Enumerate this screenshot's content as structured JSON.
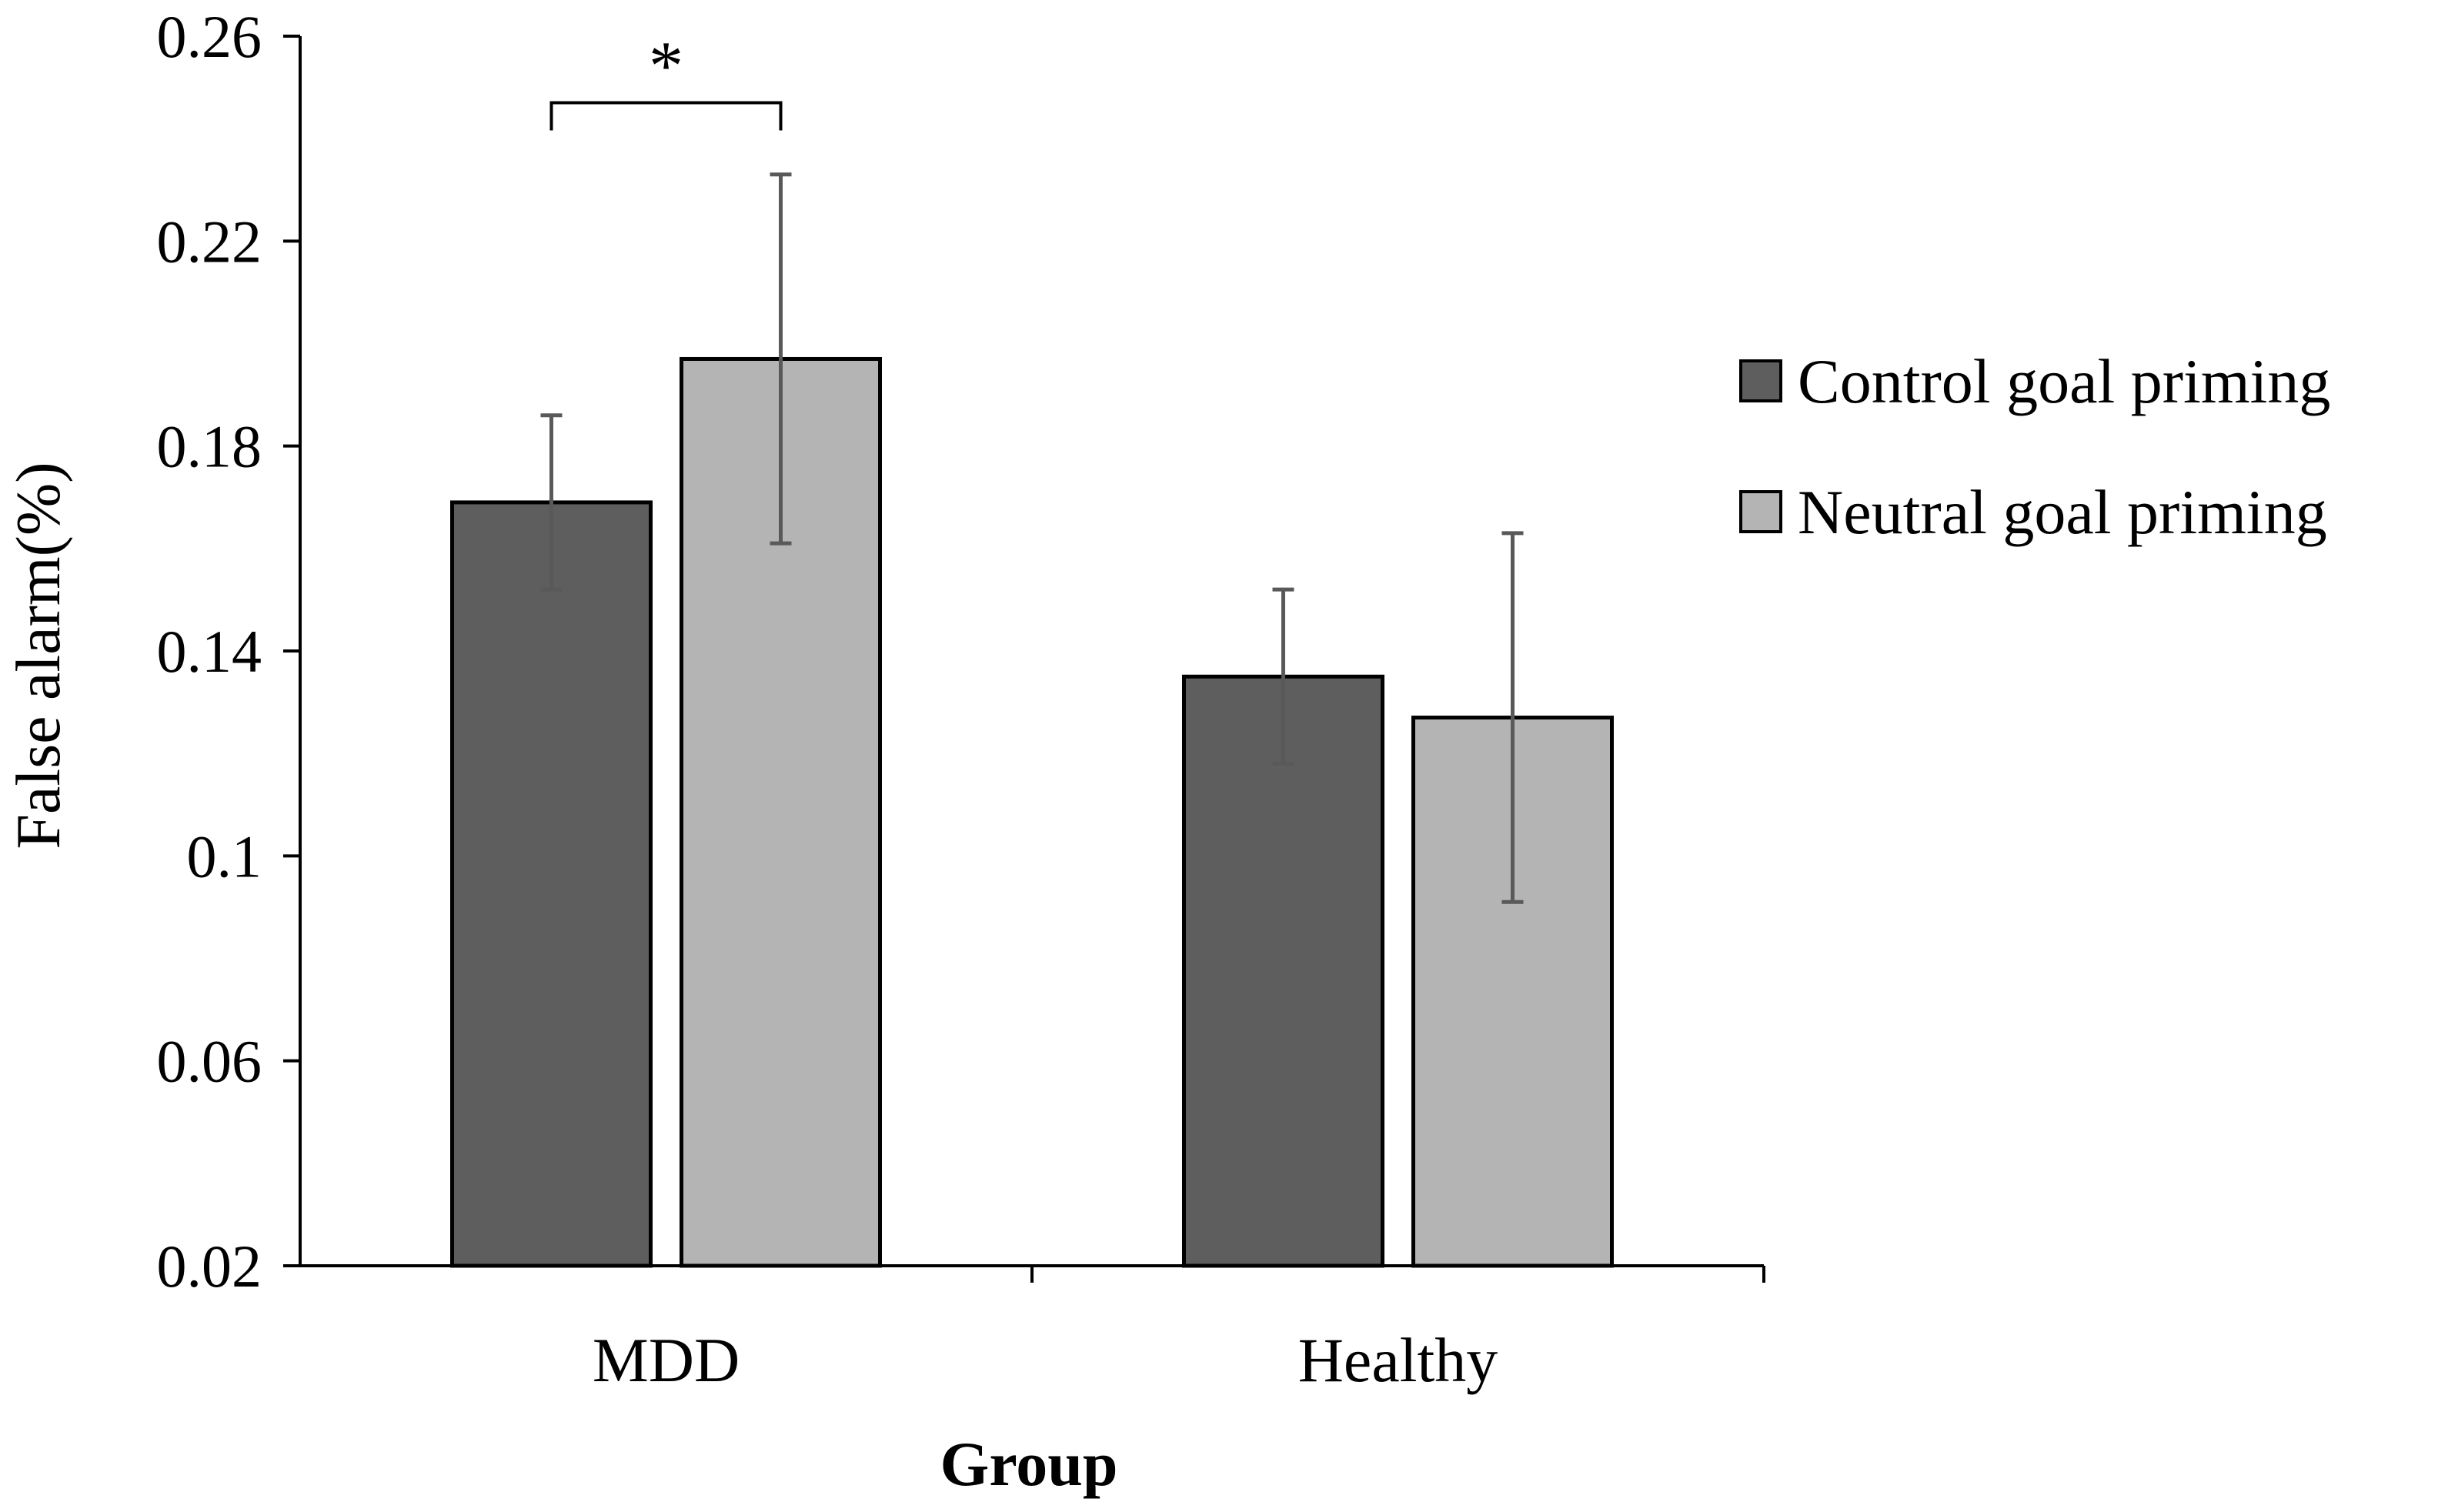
{
  "chart_data": {
    "type": "bar",
    "title": "",
    "xlabel": "Group",
    "ylabel": "False alarm(%)",
    "ylim": [
      0.02,
      0.26
    ],
    "yticks": [
      0.02,
      0.06,
      0.1,
      0.14,
      0.18,
      0.22,
      0.26
    ],
    "ytick_labels": [
      "0.02",
      "0.06",
      "0.1",
      "0.14",
      "0.18",
      "0.22",
      "0.26"
    ],
    "categories": [
      "MDD",
      "Healthy"
    ],
    "series": [
      {
        "name": "Control goal priming",
        "color": "#5e5e5e",
        "values": [
          0.169,
          0.135
        ],
        "error": [
          0.017,
          0.017
        ]
      },
      {
        "name": "Neutral goal priming",
        "color": "#b4b4b4",
        "values": [
          0.197,
          0.127
        ],
        "error": [
          0.036,
          0.036
        ]
      }
    ],
    "annotations": [
      {
        "text": "*",
        "category": "MDD",
        "between_series": [
          0,
          1
        ],
        "y": 0.247
      }
    ],
    "legend_position": "right",
    "grid": false,
    "colors": {
      "axis": "#000000",
      "error_bar": "#595959",
      "bar_outline": "#000000"
    }
  }
}
